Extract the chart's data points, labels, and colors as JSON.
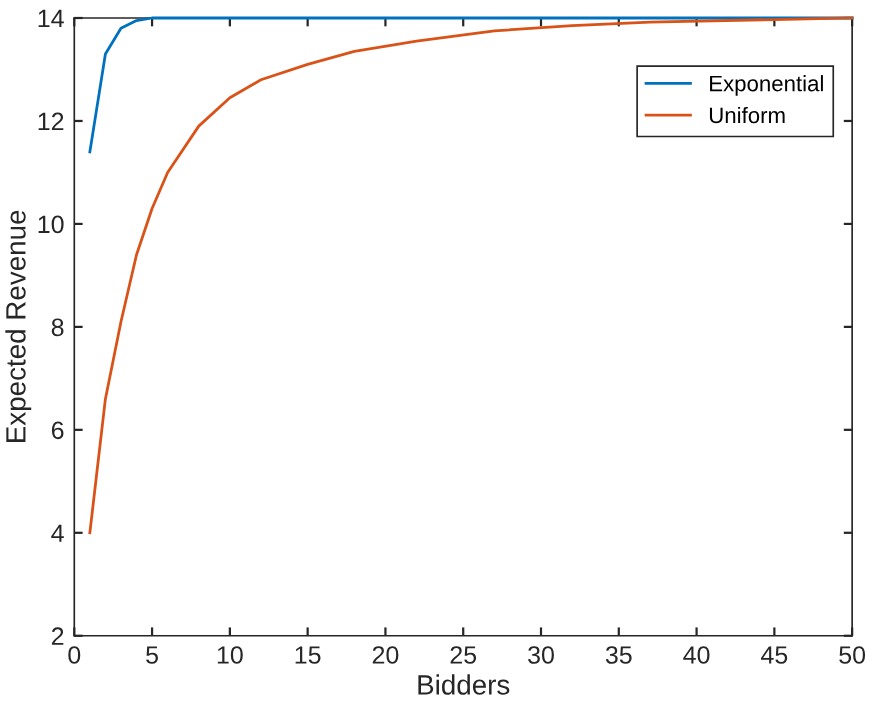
{
  "chart_data": {
    "type": "line",
    "xlabel": "Bidders",
    "ylabel": "Expected Revenue",
    "xlim": [
      0,
      50
    ],
    "ylim": [
      2,
      14
    ],
    "xticks": [
      0,
      5,
      10,
      15,
      20,
      25,
      30,
      35,
      40,
      45,
      50
    ],
    "yticks": [
      2,
      4,
      6,
      8,
      10,
      12,
      14
    ],
    "grid": false,
    "legend": "top right",
    "marker": "none",
    "line_style": "solid",
    "series": [
      {
        "name": "Exponential",
        "color": "#0072bd",
        "x": [
          1,
          2,
          3,
          4,
          5,
          10,
          20,
          30,
          40,
          50
        ],
        "values": [
          11.4,
          13.3,
          13.8,
          13.95,
          14,
          14,
          14,
          14,
          14,
          14
        ]
      },
      {
        "name": "Uniform",
        "color": "#d95319",
        "x": [
          1,
          2,
          3,
          4,
          5,
          6,
          8,
          10,
          12,
          15,
          18,
          22,
          27,
          32,
          37,
          45,
          50
        ],
        "values": [
          4.0,
          6.6,
          8.1,
          9.4,
          10.3,
          11.0,
          11.9,
          12.45,
          12.8,
          13.1,
          13.35,
          13.55,
          13.75,
          13.85,
          13.92,
          13.97,
          14.0
        ]
      }
    ]
  }
}
